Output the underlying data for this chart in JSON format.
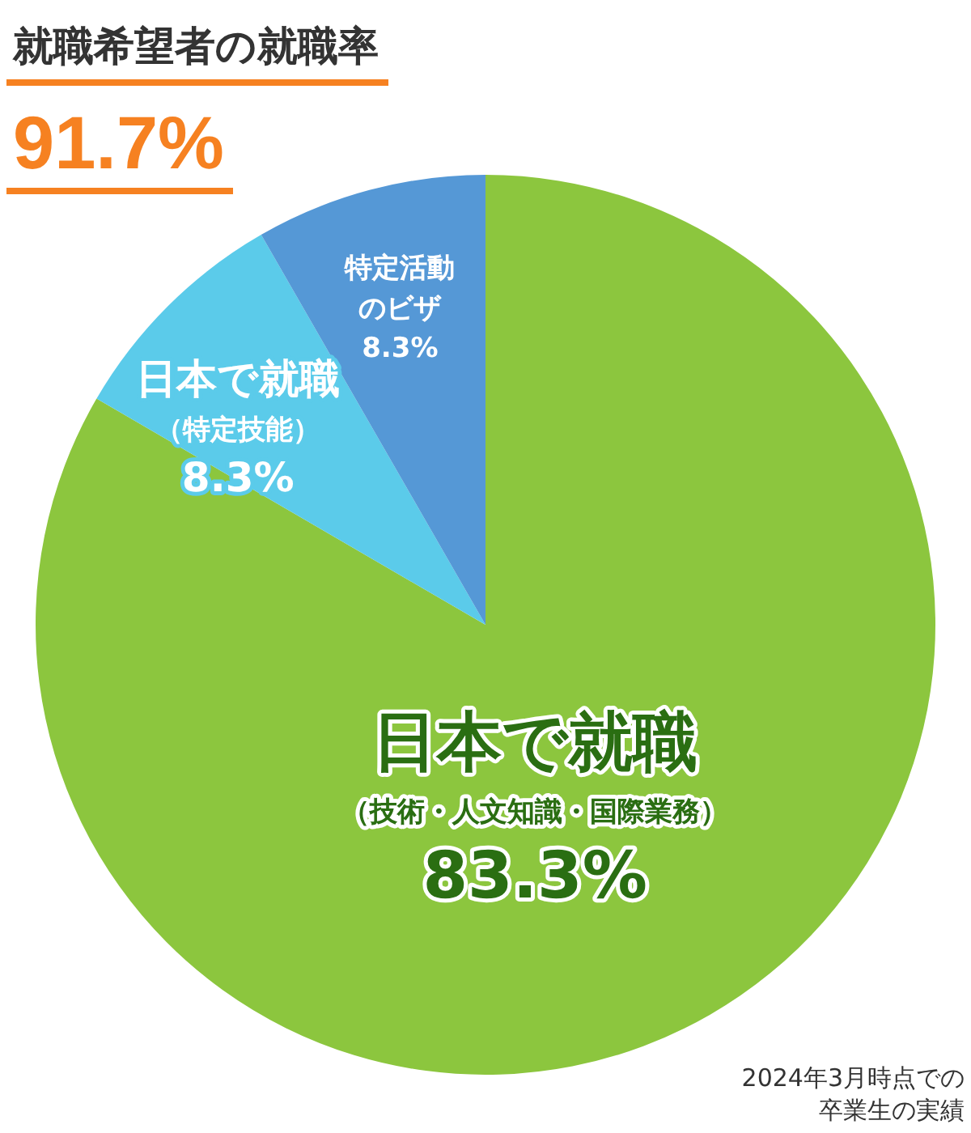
{
  "chart_data": {
    "type": "pie",
    "title": "就職希望者の就職率",
    "subtitle": "91.7%",
    "categories": [
      "日本で就職（技術・人文知識・国際業務）",
      "日本で就職（特定技能）",
      "特定活動のビザ"
    ],
    "values": [
      83.3,
      8.3,
      8.3
    ],
    "colors": [
      "#8cc63e",
      "#5bcbea",
      "#5598d6"
    ],
    "value_labels": [
      "83.3%",
      "8.3%",
      "8.3%"
    ],
    "annotations": [
      "2024年3月時点での卒業生の実績"
    ],
    "legend": false
  }
}
